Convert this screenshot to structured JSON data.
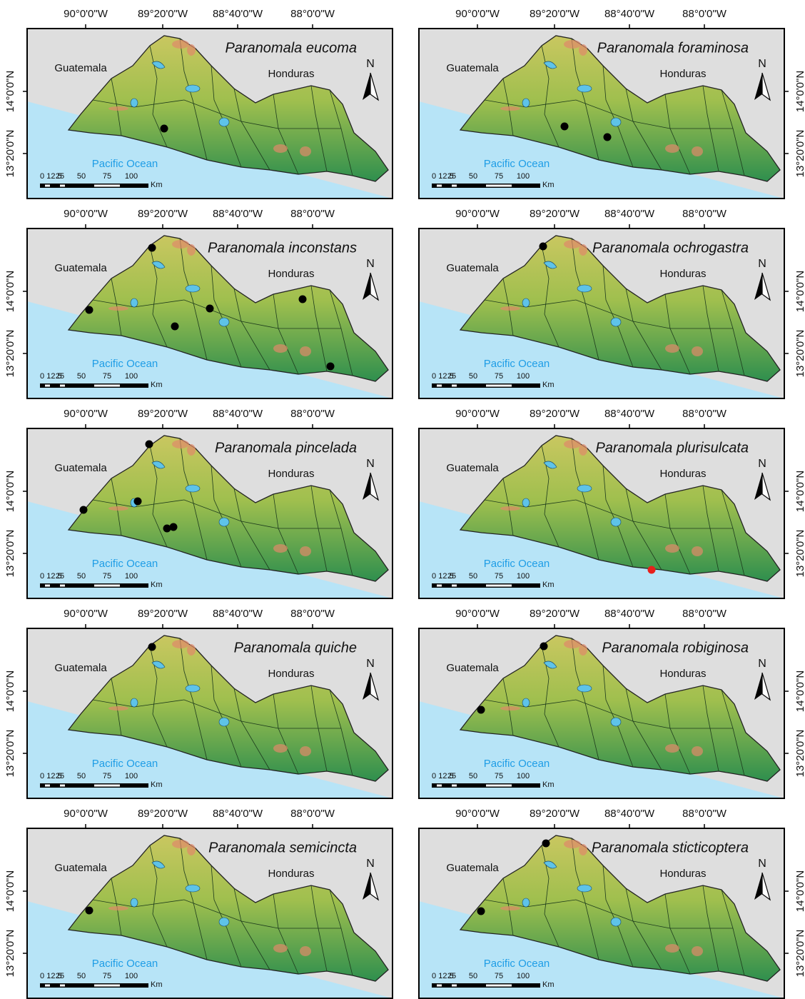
{
  "panels": [
    {
      "title": "Paranomala eucoma",
      "longitudes": [
        "90°0'0\"W",
        "89°20'0\"W",
        "88°40'0\"W",
        "88°0'0\"W"
      ],
      "latitudes": [
        "14°0'0\"N",
        "13°20'0\"N"
      ],
      "countries": [
        "Guatemala",
        "Honduras"
      ],
      "ocean": "Pacific Ocean",
      "north": "N",
      "scale": [
        "0",
        "12.5",
        "25",
        "50",
        "75",
        "100"
      ],
      "unit": "Km"
    },
    {
      "title": "Paranomala foraminosa",
      "longitudes": [
        "90°0'0\"W",
        "89°20'0\"W",
        "88°40'0\"W",
        "88°0'0\"W"
      ],
      "latitudes": [
        "14°0'0\"N",
        "13°20'0\"N"
      ],
      "countries": [
        "Guatemala",
        "Honduras"
      ],
      "ocean": "Pacific Ocean",
      "north": "N",
      "scale": [
        "0",
        "12.5",
        "25",
        "50",
        "75",
        "100"
      ],
      "unit": "Km"
    },
    {
      "title": "Paranomala inconstans",
      "longitudes": [
        "90°0'0\"W",
        "89°20'0\"W",
        "88°40'0\"W",
        "88°0'0\"W"
      ],
      "latitudes": [
        "14°0'0\"N",
        "13°20'0\"N"
      ],
      "countries": [
        "Guatemala",
        "Honduras"
      ],
      "ocean": "Pacific Ocean",
      "north": "N",
      "scale": [
        "0",
        "12.5",
        "25",
        "50",
        "75",
        "100"
      ],
      "unit": "Km"
    },
    {
      "title": "Paranomala ochrogastra",
      "longitudes": [
        "90°0'0\"W",
        "89°20'0\"W",
        "88°40'0\"W",
        "88°0'0\"W"
      ],
      "latitudes": [
        "14°0'0\"N",
        "13°20'0\"N"
      ],
      "countries": [
        "Guatemala",
        "Honduras"
      ],
      "ocean": "Pacific Ocean",
      "north": "N",
      "scale": [
        "0",
        "12.5",
        "25",
        "50",
        "75",
        "100"
      ],
      "unit": "Km"
    },
    {
      "title": "Paranomala pincelada",
      "longitudes": [
        "90°0'0\"W",
        "89°20'0\"W",
        "88°40'0\"W",
        "88°0'0\"W"
      ],
      "latitudes": [
        "14°0'0\"N",
        "13°20'0\"N"
      ],
      "countries": [
        "Guatemala",
        "Honduras"
      ],
      "ocean": "Pacific Ocean",
      "north": "N",
      "scale": [
        "0",
        "12.5",
        "25",
        "50",
        "75",
        "100"
      ],
      "unit": "Km"
    },
    {
      "title": "Paranomala plurisulcata",
      "longitudes": [
        "90°0'0\"W",
        "89°20'0\"W",
        "88°40'0\"W",
        "88°0'0\"W"
      ],
      "latitudes": [
        "14°0'0\"N",
        "13°20'0\"N"
      ],
      "countries": [
        "Guatemala",
        "Honduras"
      ],
      "ocean": "Pacific Ocean",
      "north": "N",
      "scale": [
        "0",
        "12.5",
        "25",
        "50",
        "75",
        "100"
      ],
      "unit": "Km"
    },
    {
      "title": "Paranomala quiche",
      "longitudes": [
        "90°0'0\"W",
        "89°20'0\"W",
        "88°40'0\"W",
        "88°0'0\"W"
      ],
      "latitudes": [
        "14°0'0\"N",
        "13°20'0\"N"
      ],
      "countries": [
        "Guatemala",
        "Honduras"
      ],
      "ocean": "Pacific Ocean",
      "north": "N",
      "scale": [
        "0",
        "12.5",
        "25",
        "50",
        "75",
        "100"
      ],
      "unit": "Km"
    },
    {
      "title": "Paranomala robiginosa",
      "longitudes": [
        "90°0'0\"W",
        "89°20'0\"W",
        "88°40'0\"W",
        "88°0'0\"W"
      ],
      "latitudes": [
        "14°0'0\"N",
        "13°20'0\"N"
      ],
      "countries": [
        "Guatemala",
        "Honduras"
      ],
      "ocean": "Pacific Ocean",
      "north": "N",
      "scale": [
        "0",
        "12.5",
        "25",
        "50",
        "75",
        "100"
      ],
      "unit": "Km"
    },
    {
      "title": "Paranomala semicincta",
      "longitudes": [
        "90°0'0\"W",
        "89°20'0\"W",
        "88°40'0\"W",
        "88°0'0\"W"
      ],
      "latitudes": [
        "14°0'0\"N",
        "13°20'0\"N"
      ],
      "countries": [
        "Guatemala",
        "Honduras"
      ],
      "ocean": "Pacific Ocean",
      "north": "N",
      "scale": [
        "0",
        "12.5",
        "25",
        "50",
        "75",
        "100"
      ],
      "unit": "Km"
    },
    {
      "title": "Paranomala sticticoptera",
      "longitudes": [
        "90°0'0\"W",
        "89°20'0\"W",
        "88°40'0\"W",
        "88°0'0\"W"
      ],
      "latitudes": [
        "14°0'0\"N",
        "13°20'0\"N"
      ],
      "countries": [
        "Guatemala",
        "Honduras"
      ],
      "ocean": "Pacific Ocean",
      "north": "N",
      "scale": [
        "0",
        "12.5",
        "25",
        "50",
        "75",
        "100"
      ],
      "unit": "Km"
    }
  ]
}
